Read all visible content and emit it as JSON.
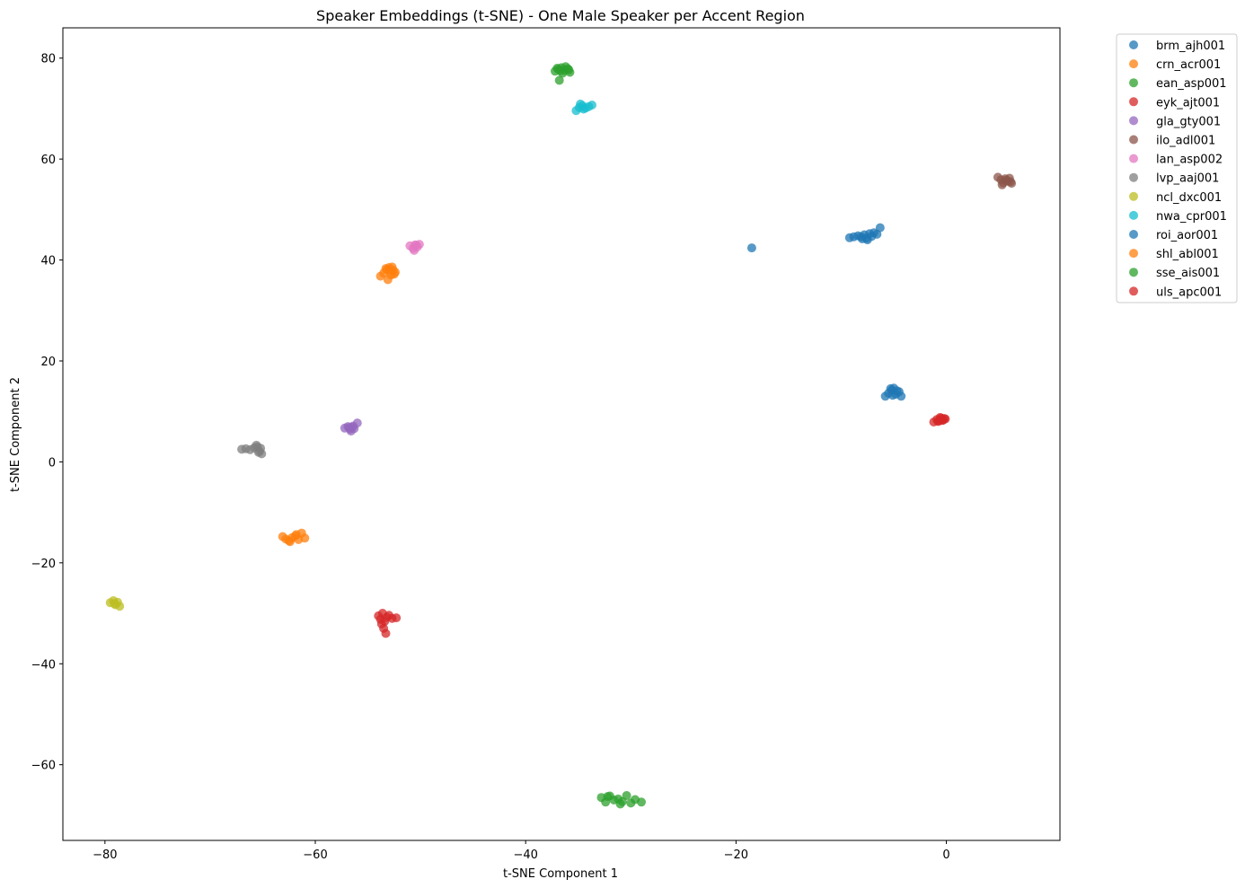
{
  "chart_data": {
    "type": "scatter",
    "title": "Speaker Embeddings (t-SNE) - One Male Speaker per Accent Region",
    "xlabel": "t-SNE Component 1",
    "ylabel": "t-SNE Component 2",
    "xlim": [
      -84,
      10.8
    ],
    "ylim": [
      -75,
      86
    ],
    "xticks": [
      -80,
      -60,
      -40,
      -20,
      0
    ],
    "yticks": [
      -60,
      -40,
      -20,
      0,
      20,
      40,
      60,
      80
    ],
    "grid": false,
    "legend_position": "outside top-right",
    "series": [
      {
        "name": "brm_ajh001",
        "color": "#1f77b4",
        "x": [
          -18.5,
          -9.2,
          -8.8,
          -8.4,
          -8.1,
          -7.8,
          -7.6,
          -7.3,
          -7.1,
          -6.9,
          -6.6,
          -6.3,
          -8.0,
          -7.5
        ],
        "y": [
          42.4,
          44.4,
          44.6,
          44.8,
          44.6,
          45.0,
          44.3,
          45.2,
          44.7,
          45.4,
          45.1,
          46.4,
          44.2,
          44.0
        ]
      },
      {
        "name": "crn_acr001",
        "color": "#ff7f0e",
        "x": [
          -53.8,
          -53.5,
          -53.2,
          -53.0,
          -52.8,
          -52.6,
          -52.4,
          -53.1,
          -52.9,
          -52.5,
          -53.3,
          -52.7
        ],
        "y": [
          36.8,
          37.4,
          38.1,
          38.5,
          37.0,
          38.0,
          37.6,
          36.1,
          37.8,
          37.2,
          38.3,
          38.6
        ]
      },
      {
        "name": "ean_asp001",
        "color": "#2ca02c",
        "x": [
          -37.2,
          -36.9,
          -36.6,
          -36.3,
          -36.0,
          -35.8,
          -36.8,
          -36.5,
          -36.2,
          -37.0,
          -36.7,
          -35.9
        ],
        "y": [
          77.4,
          77.8,
          78.1,
          77.6,
          77.9,
          77.2,
          75.6,
          77.0,
          78.3,
          78.0,
          77.5,
          77.7
        ]
      },
      {
        "name": "eyk_ajt001",
        "color": "#d62728",
        "x": [
          -1.2,
          -0.9,
          -0.7,
          -0.5,
          -0.3,
          -0.1,
          -0.6,
          -0.8,
          -0.4,
          -0.2
        ],
        "y": [
          7.9,
          8.4,
          8.1,
          8.7,
          8.3,
          8.5,
          8.8,
          8.0,
          8.2,
          8.6
        ]
      },
      {
        "name": "gla_gty001",
        "color": "#9467bd",
        "x": [
          -57.2,
          -56.9,
          -56.7,
          -56.5,
          -56.3,
          -56.0,
          -56.6,
          -56.8,
          -56.4
        ],
        "y": [
          6.7,
          7.0,
          6.5,
          6.9,
          6.6,
          7.7,
          6.1,
          6.8,
          7.1
        ]
      },
      {
        "name": "ilo_adl001",
        "color": "#8c564b",
        "x": [
          4.9,
          5.2,
          5.4,
          5.6,
          5.8,
          6.0,
          6.2,
          5.3,
          5.7,
          6.1
        ],
        "y": [
          56.4,
          55.9,
          55.3,
          56.1,
          55.6,
          56.2,
          55.2,
          54.9,
          55.8,
          55.5
        ]
      },
      {
        "name": "lan_asp002",
        "color": "#e377c2",
        "x": [
          -51.0,
          -50.7,
          -50.5,
          -50.3,
          -50.1,
          -50.6,
          -50.4
        ],
        "y": [
          42.8,
          42.3,
          43.0,
          42.6,
          43.1,
          41.9,
          42.9
        ]
      },
      {
        "name": "lvp_aaj001",
        "color": "#7f7f7f",
        "x": [
          -67.0,
          -66.6,
          -66.2,
          -65.8,
          -65.5,
          -65.3,
          -65.1,
          -65.6,
          -65.4,
          -65.2
        ],
        "y": [
          2.5,
          2.6,
          2.4,
          2.8,
          3.0,
          2.1,
          1.6,
          3.3,
          1.9,
          2.7
        ]
      },
      {
        "name": "ncl_dxc001",
        "color": "#bcbd22",
        "x": [
          -79.5,
          -79.2,
          -79.0,
          -78.8,
          -78.6,
          -79.1
        ],
        "y": [
          -27.9,
          -27.5,
          -28.3,
          -27.8,
          -28.6,
          -28.1
        ]
      },
      {
        "name": "nwa_cpr001",
        "color": "#17becf",
        "x": [
          -35.2,
          -34.9,
          -34.6,
          -34.3,
          -34.0,
          -33.7,
          -34.8,
          -34.5
        ],
        "y": [
          69.6,
          70.2,
          70.6,
          70.1,
          70.4,
          70.7,
          70.9,
          69.9
        ]
      },
      {
        "name": "roi_aor001",
        "color": "#1f77b4",
        "x": [
          -5.8,
          -5.5,
          -5.2,
          -5.0,
          -4.8,
          -4.5,
          -4.3,
          -5.3,
          -5.1,
          -4.7
        ],
        "y": [
          13.0,
          13.6,
          14.2,
          14.6,
          13.4,
          13.9,
          13.0,
          14.5,
          13.2,
          14.1
        ]
      },
      {
        "name": "shl_abl001",
        "color": "#ff7f0e",
        "x": [
          -63.1,
          -62.8,
          -62.5,
          -62.2,
          -61.9,
          -61.6,
          -61.3,
          -61.0,
          -62.4,
          -61.8
        ],
        "y": [
          -14.8,
          -15.3,
          -15.6,
          -15.0,
          -14.7,
          -15.4,
          -14.1,
          -15.1,
          -15.8,
          -14.4
        ]
      },
      {
        "name": "sse_ais001",
        "color": "#2ca02c",
        "x": [
          -32.8,
          -32.4,
          -32.0,
          -31.6,
          -31.2,
          -30.8,
          -30.4,
          -30.0,
          -29.6,
          -29.0,
          -31.0,
          -32.2
        ],
        "y": [
          -66.5,
          -67.4,
          -66.2,
          -67.0,
          -66.8,
          -67.3,
          -66.1,
          -67.6,
          -66.9,
          -67.4,
          -67.8,
          -66.3
        ]
      },
      {
        "name": "uls_apc001",
        "color": "#d62728",
        "x": [
          -54.0,
          -53.8,
          -53.6,
          -53.4,
          -53.2,
          -53.0,
          -52.7,
          -52.3,
          -53.5,
          -53.3,
          -53.7
        ],
        "y": [
          -30.5,
          -31.2,
          -30.0,
          -31.6,
          -30.8,
          -30.4,
          -31.0,
          -30.9,
          -33.0,
          -34.0,
          -32.1
        ]
      }
    ]
  }
}
